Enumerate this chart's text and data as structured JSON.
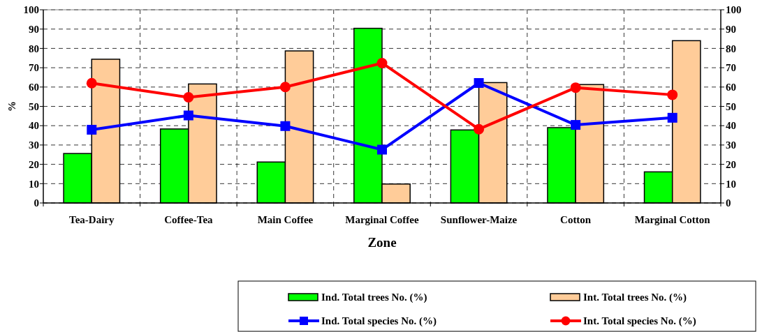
{
  "chart_data": {
    "type": "bar",
    "xlabel": "Zone",
    "ylabel": "%",
    "categories": [
      "Tea-Dairy",
      "Coffee-Tea",
      "Main Coffee",
      "Marginal Coffee",
      "Sunflower-Maize",
      "Cotton",
      "Marginal Cotton"
    ],
    "series": [
      {
        "name": "Ind. Total trees No. (%)",
        "color": "#00ff00",
        "values": [
          25.6,
          38.3,
          21.2,
          90.4,
          37.8,
          39.0,
          16.1
        ]
      },
      {
        "name": "Int. Total trees No. (%)",
        "color": "#ffcc99",
        "values": [
          74.4,
          61.6,
          78.7,
          9.8,
          62.3,
          61.3,
          84.0
        ]
      },
      {
        "name": "Ind. Total species No. (%)",
        "type": "line",
        "color": "#0000ff",
        "marker": "square",
        "values": [
          37.9,
          45.3,
          39.8,
          27.6,
          62.1,
          40.4,
          44.1
        ]
      },
      {
        "name": "Int. Total species No. (%)",
        "type": "line",
        "color": "#ff0000",
        "marker": "circle",
        "values": [
          62.0,
          54.7,
          60.0,
          72.4,
          38.2,
          59.7,
          56.0
        ]
      }
    ],
    "ylim": [
      0,
      100
    ],
    "yticks": [
      0,
      10,
      20,
      30,
      40,
      50,
      60,
      70,
      80,
      90,
      100
    ],
    "y2lim": [
      0,
      100
    ],
    "y2ticks": [
      0,
      10,
      20,
      30,
      40,
      50,
      60,
      70,
      80,
      90,
      100
    ],
    "grid": true,
    "legend": "bottom"
  }
}
